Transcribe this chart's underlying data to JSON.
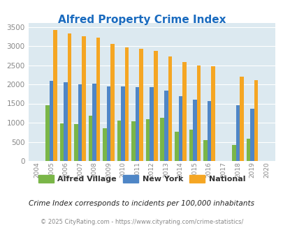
{
  "title": "Alfred Property Crime Index",
  "years": [
    2004,
    2005,
    2006,
    2007,
    2008,
    2009,
    2010,
    2011,
    2012,
    2013,
    2014,
    2015,
    2016,
    2017,
    2018,
    2019,
    2020
  ],
  "alfred_village": [
    0,
    1450,
    990,
    960,
    1180,
    850,
    1060,
    1040,
    1090,
    1130,
    760,
    820,
    550,
    0,
    420,
    590,
    0
  ],
  "new_york": [
    0,
    2090,
    2050,
    2000,
    2020,
    1950,
    1950,
    1930,
    1930,
    1830,
    1700,
    1600,
    1560,
    0,
    1450,
    1370,
    0
  ],
  "national": [
    0,
    3415,
    3330,
    3260,
    3215,
    3050,
    2960,
    2920,
    2870,
    2730,
    2590,
    2500,
    2470,
    0,
    2200,
    2110,
    0
  ],
  "alfred_color": "#7ab648",
  "newyork_color": "#4f86c6",
  "national_color": "#f5a623",
  "bg_color": "#dce9f0",
  "ylim": [
    0,
    3600
  ],
  "yticks": [
    0,
    500,
    1000,
    1500,
    2000,
    2500,
    3000,
    3500
  ],
  "subtitle": "Crime Index corresponds to incidents per 100,000 inhabitants",
  "footer": "© 2025 CityRating.com - https://www.cityrating.com/crime-statistics/",
  "legend_labels": [
    "Alfred Village",
    "New York",
    "National"
  ],
  "title_color": "#1a6bbf",
  "tick_color": "#888888",
  "subtitle_color": "#222222",
  "footer_color": "#888888"
}
